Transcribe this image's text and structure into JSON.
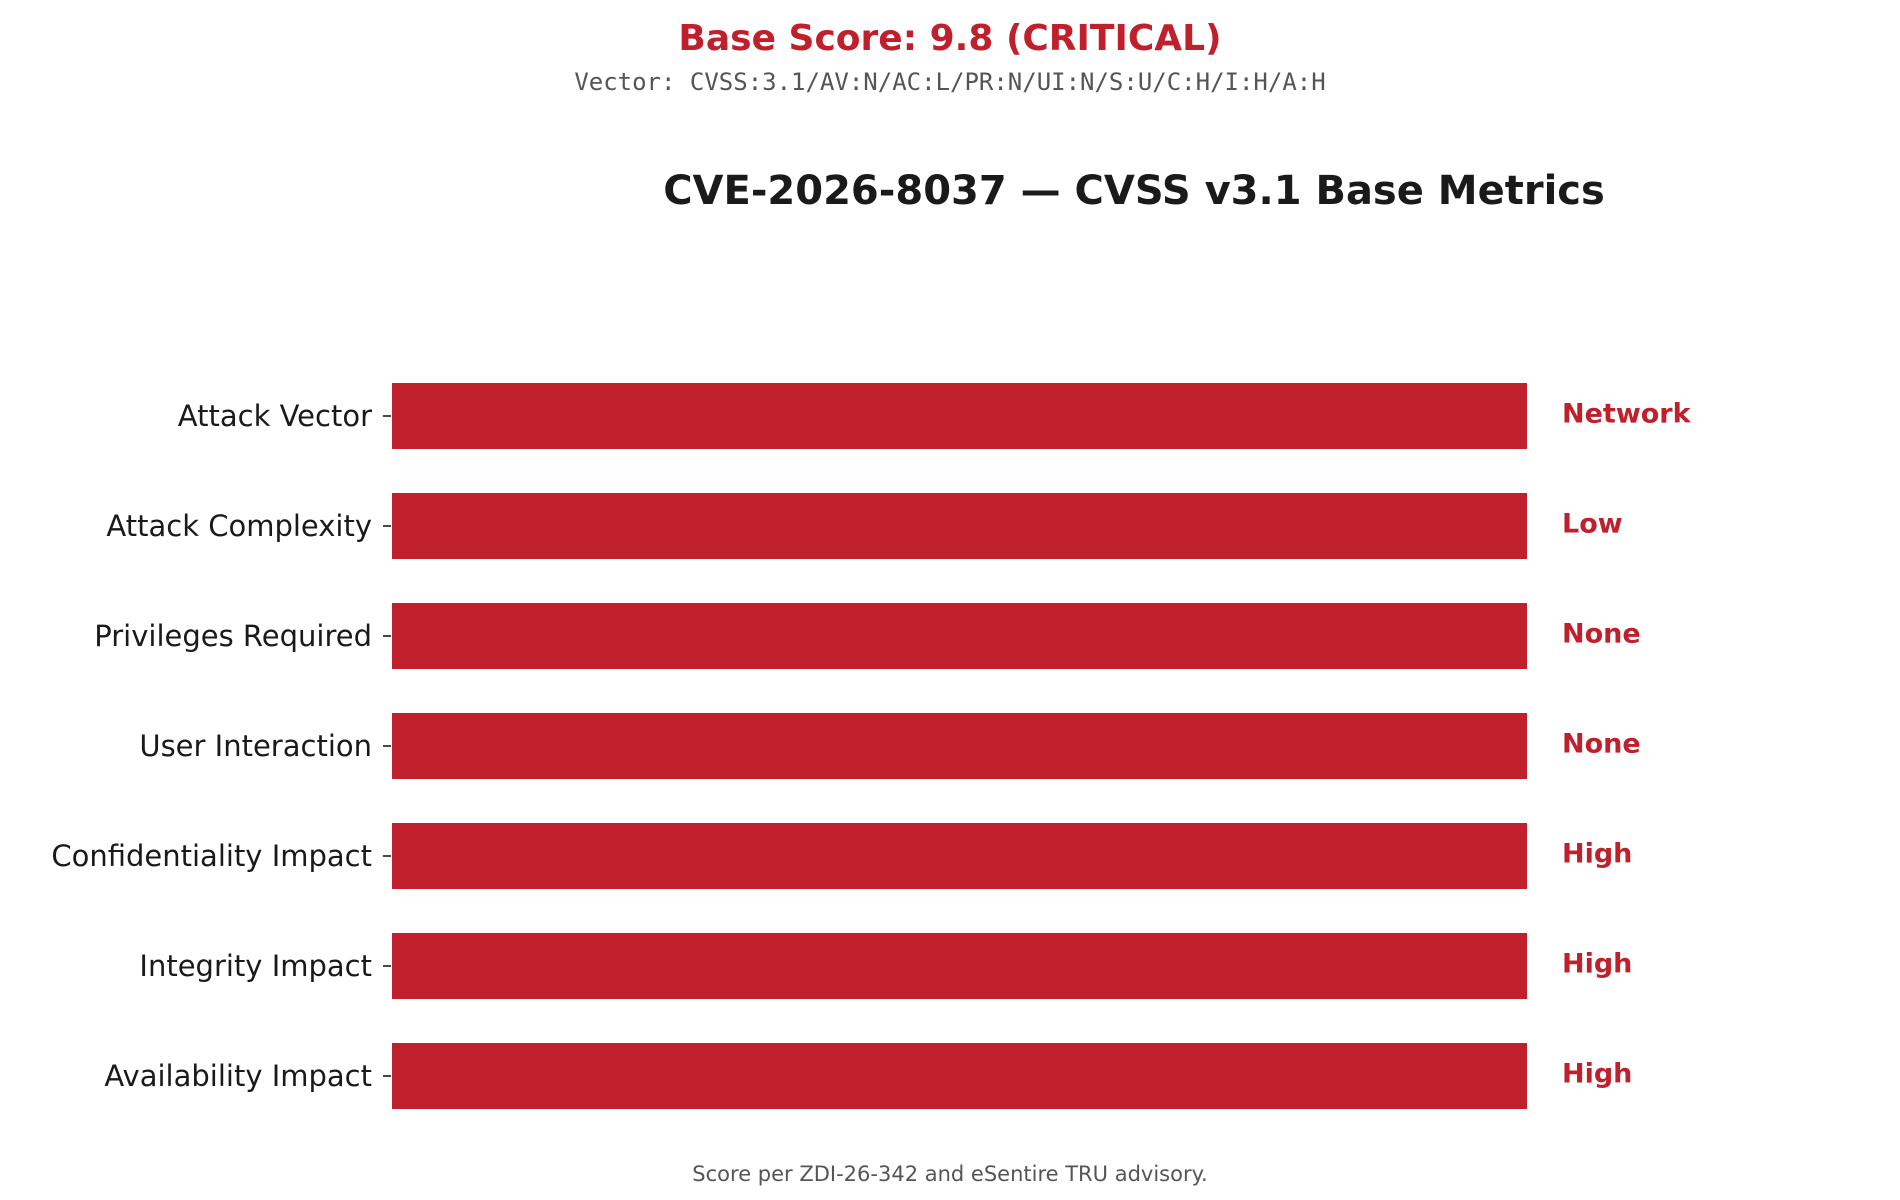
{
  "header": {
    "score_title": "Base Score: 9.8 (CRITICAL)",
    "vector": "Vector: CVSS:3.1/AV:N/AC:L/PR:N/UI:N/S:U/C:H/I:H/A:H"
  },
  "footnote": "Score per ZDI-26-342 and eSentire TRU advisory.",
  "colors": {
    "bar": "#c0202b",
    "value_label": "#c0202b",
    "category_label": "#1a1a1a"
  },
  "chart_data": {
    "type": "bar",
    "orientation": "horizontal",
    "title": "CVE-2026-8037 — CVSS v3.1 Base Metrics",
    "xlabel": "",
    "ylabel": "",
    "grid": false,
    "categories": [
      "Attack Vector",
      "Attack Complexity",
      "Privileges Required",
      "User Interaction",
      "Confidentiality Impact",
      "Integrity Impact",
      "Availability Impact"
    ],
    "values": [
      1,
      1,
      1,
      1,
      1,
      1,
      1
    ],
    "xlim": [
      0,
      1
    ],
    "value_labels": [
      "Network",
      "Low",
      "None",
      "None",
      "High",
      "High",
      "High"
    ]
  }
}
